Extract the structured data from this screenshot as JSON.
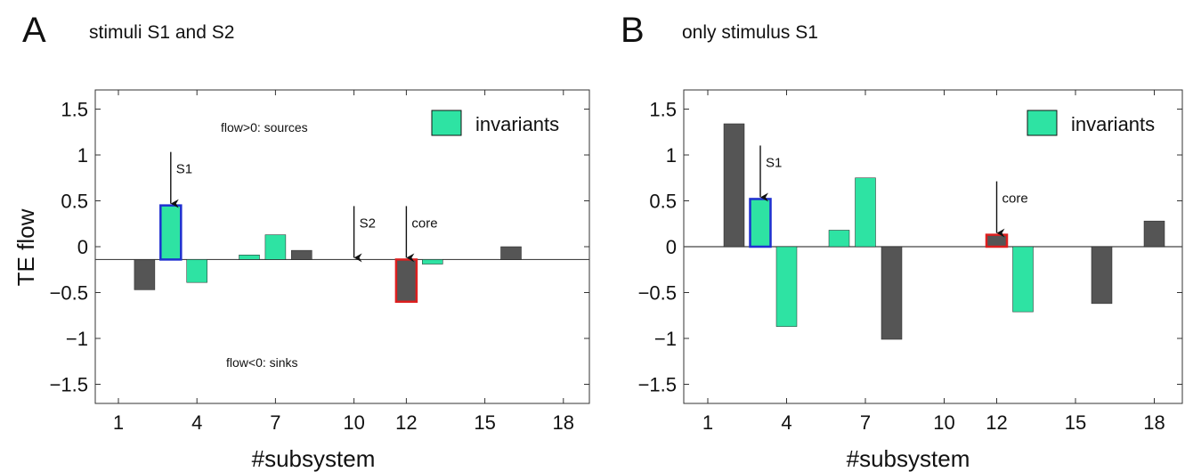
{
  "colors": {
    "dark": "#555555",
    "green": "#2ee3a3",
    "blue": "#1f2fd0",
    "red": "#dd1f1f"
  },
  "chart_data": [
    {
      "type": "bar",
      "panel_letter": "A",
      "title": "stimuli S1 and S2",
      "xlabel": "#subsystem",
      "ylabel": "TE flow",
      "baseline": -0.14,
      "xticks": [
        1,
        4,
        7,
        10,
        12,
        15,
        18
      ],
      "yticks": [
        1.5,
        1,
        0.5,
        0,
        -0.5,
        -1,
        -1.5
      ],
      "ytick_labels": [
        "1.5",
        "1",
        "0.5",
        "0",
        "−0.5",
        "−1",
        "−1.5"
      ],
      "ylim": [
        -1.7,
        1.7
      ],
      "legend": {
        "label": "invariants",
        "position": "top-right"
      },
      "notes": [
        "flow>0: sources",
        "flow<0: sinks"
      ],
      "bars": [
        {
          "x": 2,
          "value": -0.47,
          "color": "dark"
        },
        {
          "x": 3,
          "value": 0.45,
          "color": "green",
          "outline": "blue"
        },
        {
          "x": 4,
          "value": -0.39,
          "color": "green"
        },
        {
          "x": 6,
          "value": -0.09,
          "color": "green"
        },
        {
          "x": 7,
          "value": 0.13,
          "color": "green"
        },
        {
          "x": 8,
          "value": -0.04,
          "color": "dark"
        },
        {
          "x": 12,
          "value": -0.6,
          "color": "dark",
          "outline": "red"
        },
        {
          "x": 13,
          "value": -0.19,
          "color": "green"
        },
        {
          "x": 16,
          "value": 0.0,
          "color": "dark"
        }
      ],
      "annotations": [
        {
          "label": "S1",
          "x": 3
        },
        {
          "label": "S2",
          "x": 10
        },
        {
          "label": "core",
          "x": 12
        }
      ]
    },
    {
      "type": "bar",
      "panel_letter": "B",
      "title": "only stimulus S1",
      "xlabel": "#subsystem",
      "ylabel": "",
      "baseline": 0,
      "xticks": [
        1,
        4,
        7,
        10,
        12,
        15,
        18
      ],
      "yticks": [
        1.5,
        1,
        0.5,
        0,
        -0.5,
        -1,
        -1.5
      ],
      "ytick_labels": [
        "1.5",
        "1",
        "0.5",
        "0",
        "−0.5",
        "−1",
        "−1.5"
      ],
      "ylim": [
        -1.7,
        1.7
      ],
      "legend": {
        "label": "invariants",
        "position": "top-right"
      },
      "notes": [],
      "bars": [
        {
          "x": 2,
          "value": 1.34,
          "color": "dark"
        },
        {
          "x": 3,
          "value": 0.52,
          "color": "green",
          "outline": "blue"
        },
        {
          "x": 4,
          "value": -0.87,
          "color": "green"
        },
        {
          "x": 6,
          "value": 0.18,
          "color": "green"
        },
        {
          "x": 7,
          "value": 0.75,
          "color": "green"
        },
        {
          "x": 8,
          "value": -1.01,
          "color": "dark"
        },
        {
          "x": 12,
          "value": 0.13,
          "color": "dark",
          "outline": "red"
        },
        {
          "x": 13,
          "value": -0.71,
          "color": "green"
        },
        {
          "x": 16,
          "value": -0.62,
          "color": "dark"
        },
        {
          "x": 18,
          "value": 0.28,
          "color": "dark"
        }
      ],
      "annotations": [
        {
          "label": "S1",
          "x": 3
        },
        {
          "label": "core",
          "x": 12
        }
      ]
    }
  ]
}
